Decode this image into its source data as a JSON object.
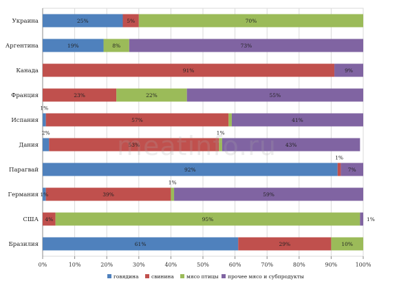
{
  "watermark": "meatinfo.ru",
  "chart_data": {
    "type": "bar",
    "orientation": "horizontal",
    "stacked": true,
    "percent": true,
    "categories": [
      "Украина",
      "Аргентина",
      "Канада",
      "Франция",
      "Испания",
      "Дания",
      "Парагвай",
      "Германия",
      "США",
      "Бразилия"
    ],
    "series": [
      {
        "name": "говядина",
        "color": "#4f81bd",
        "values": [
          25,
          19,
          0,
          0,
          1,
          2,
          92,
          1,
          0,
          61
        ]
      },
      {
        "name": "свинина",
        "color": "#c0504d",
        "values": [
          5,
          0,
          91,
          23,
          57,
          53,
          1,
          39,
          4,
          29
        ]
      },
      {
        "name": "мясо птицы",
        "color": "#9bbb59",
        "values": [
          70,
          8,
          0,
          22,
          1,
          1,
          0,
          1,
          95,
          10
        ]
      },
      {
        "name": "прочее мясо и субпродукты",
        "color": "#8064a2",
        "values": [
          0,
          73,
          9,
          55,
          41,
          43,
          7,
          59,
          1,
          0
        ]
      }
    ],
    "xlim": [
      0,
      100
    ],
    "x_ticks": [
      "0%",
      "10%",
      "20%",
      "30%",
      "40%",
      "50%",
      "60%",
      "70%",
      "80%",
      "90%",
      "100%"
    ],
    "grid": true,
    "legend_position": "bottom",
    "legend_labels": [
      "говядина",
      "свинина",
      "мясо птицы",
      "прочее мясо и субпродукты"
    ],
    "data_labels": [
      [
        {
          "series": 0,
          "text": "25%"
        },
        {
          "series": 1,
          "text": "5%"
        },
        {
          "series": 2,
          "text": "70%"
        }
      ],
      [
        {
          "series": 0,
          "text": "19%"
        },
        {
          "series": 2,
          "text": "8%"
        },
        {
          "series": 3,
          "text": "73%"
        }
      ],
      [
        {
          "series": 1,
          "text": "91%"
        },
        {
          "series": 3,
          "text": "9%"
        }
      ],
      [
        {
          "series": 1,
          "text": "23%"
        },
        {
          "series": 2,
          "text": "22%"
        },
        {
          "series": 3,
          "text": "55%"
        }
      ],
      [
        {
          "series": 0,
          "text": "1%",
          "outside": "above"
        },
        {
          "series": 1,
          "text": "57%"
        },
        {
          "series": 3,
          "text": "41%"
        }
      ],
      [
        {
          "series": 0,
          "text": "2%",
          "outside": "above"
        },
        {
          "series": 1,
          "text": "53%"
        },
        {
          "series": 2,
          "text": "1%",
          "outside": "above"
        },
        {
          "series": 3,
          "text": "43%"
        }
      ],
      [
        {
          "series": 0,
          "text": "92%"
        },
        {
          "series": 1,
          "text": "1%",
          "outside": "above"
        },
        {
          "series": 3,
          "text": "7%"
        }
      ],
      [
        {
          "series": 0,
          "text": "1%"
        },
        {
          "series": 1,
          "text": "39%"
        },
        {
          "series": 2,
          "text": "1%",
          "outside": "above"
        },
        {
          "series": 3,
          "text": "59%"
        }
      ],
      [
        {
          "series": 1,
          "text": "4%"
        },
        {
          "series": 2,
          "text": "95%"
        },
        {
          "series": 3,
          "text": "1%",
          "outside": "right"
        }
      ],
      [
        {
          "series": 0,
          "text": "61%"
        },
        {
          "series": 1,
          "text": "29%"
        },
        {
          "series": 2,
          "text": "10%"
        }
      ]
    ]
  }
}
